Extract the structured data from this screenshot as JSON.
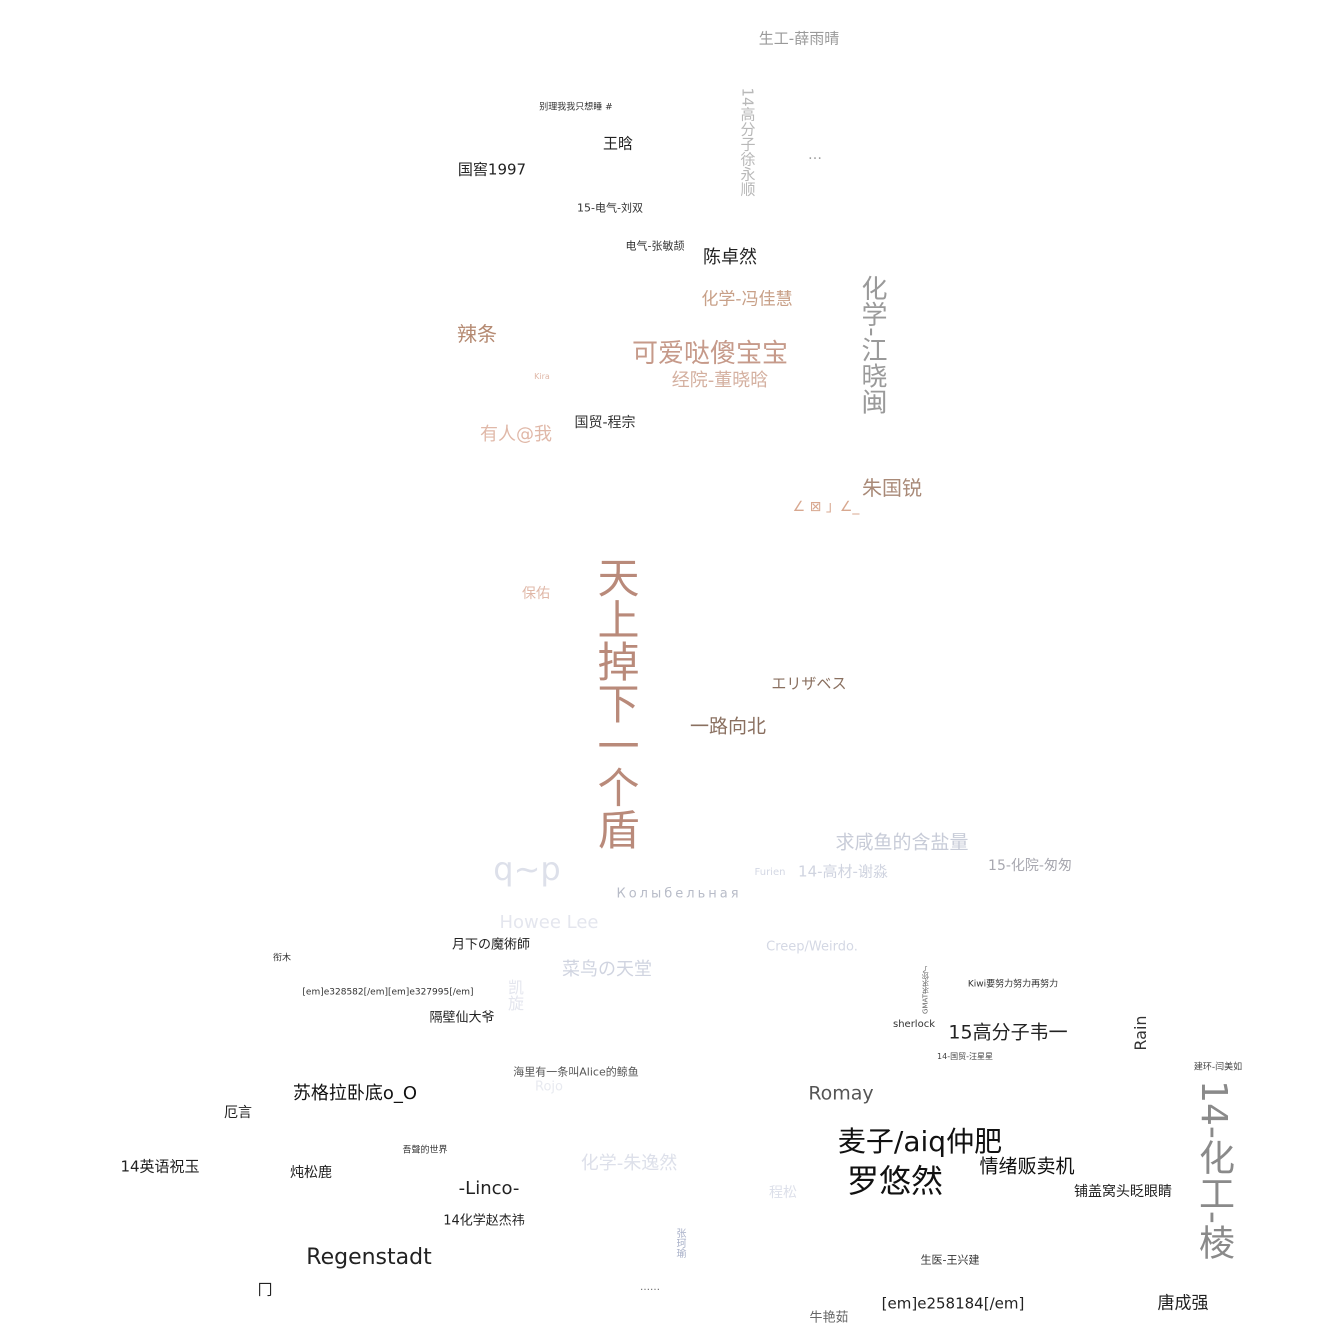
{
  "words": [
    {
      "text": "天上掉下一个盾",
      "color": "#b98a7a",
      "weight": "heavy"
    },
    {
      "text": "可爱哒傻宝宝",
      "color": "#c69a8a",
      "weight": "big"
    },
    {
      "text": "化学-江晓闽",
      "color": "#9a9a9a",
      "weight": "big"
    },
    {
      "text": "14-化工-棱",
      "color": "#8a8a8a",
      "weight": "heavy"
    },
    {
      "text": "麦子/aiq仲肥",
      "color": "#111111",
      "weight": "big"
    },
    {
      "text": "罗悠然",
      "color": "#111111",
      "weight": "big"
    },
    {
      "text": "Regenstadt",
      "color": "#222222",
      "weight": "mid"
    },
    {
      "text": "q~p",
      "color": "#dde0ea",
      "weight": "big"
    },
    {
      "text": "经院-董晓晗",
      "color": "#d4b0a0",
      "weight": "mid"
    },
    {
      "text": "朱国锐",
      "color": "#a98a78",
      "weight": "mid"
    },
    {
      "text": "辣条",
      "color": "#b58a72",
      "weight": "mid"
    },
    {
      "text": "有人@我",
      "color": "#e0b8a8",
      "weight": "mid"
    },
    {
      "text": "化学-冯佳慧",
      "color": "#c8a088",
      "weight": "mid"
    },
    {
      "text": "陈卓然",
      "color": "#222222",
      "weight": "mid"
    },
    {
      "text": "一路向北",
      "color": "#8a7060",
      "weight": "mid"
    },
    {
      "text": "エリザベス",
      "color": "#8a7060",
      "weight": "small"
    },
    {
      "text": "生工-薛雨晴",
      "color": "#9a9a9a",
      "weight": "small"
    },
    {
      "text": "14高分子徐永顺",
      "color": "#b8b8b8",
      "weight": "small"
    },
    {
      "text": "…",
      "color": "#a0a0a0",
      "weight": "small"
    },
    {
      "text": "王晗",
      "color": "#222222",
      "weight": "small"
    },
    {
      "text": "国窖1997",
      "color": "#222222",
      "weight": "small"
    },
    {
      "text": "别理我我只想睡 #",
      "color": "#333333",
      "weight": "tiny"
    },
    {
      "text": "15-电气-刘双",
      "color": "#333333",
      "weight": "tiny"
    },
    {
      "text": "电气-张敏颉",
      "color": "#333333",
      "weight": "tiny"
    },
    {
      "text": "国贸-程宗",
      "color": "#333333",
      "weight": "small"
    },
    {
      "text": "保佑",
      "color": "#e0b8a8",
      "weight": "small"
    },
    {
      "text": "求咸鱼的含盐量",
      "color": "#c8ccd8",
      "weight": "mid"
    },
    {
      "text": "14-高材-谢淼",
      "color": "#d0d4e0",
      "weight": "small"
    },
    {
      "text": "15-化院-匆匆",
      "color": "#a8a8b0",
      "weight": "small"
    },
    {
      "text": "Колыбельная",
      "color": "#b8bcc8",
      "weight": "small"
    },
    {
      "text": "Howee Lee",
      "color": "#e4e6ee",
      "weight": "mid"
    },
    {
      "text": "菜鸟の天堂",
      "color": "#d0d4e0",
      "weight": "mid"
    },
    {
      "text": "Creep/Weirdo.",
      "color": "#d4d8e4",
      "weight": "small"
    },
    {
      "text": "月下の魔術師",
      "color": "#222222",
      "weight": "small"
    },
    {
      "text": "隔壁仙大爷",
      "color": "#222222",
      "weight": "small"
    },
    {
      "text": "15高分子韦一",
      "color": "#222222",
      "weight": "mid"
    },
    {
      "text": "Rain",
      "color": "#333333",
      "weight": "small"
    },
    {
      "text": "Kiwi要努力努力再努力",
      "color": "#333333",
      "weight": "tiny"
    },
    {
      "text": "sherlock",
      "color": "#333333",
      "weight": "tiny"
    },
    {
      "text": "苏格拉卧底o_O",
      "color": "#111111",
      "weight": "mid"
    },
    {
      "text": "Romay",
      "color": "#555555",
      "weight": "mid"
    },
    {
      "text": "情绪贩卖机",
      "color": "#111111",
      "weight": "mid"
    },
    {
      "text": "铺盖窝头眨眼睛",
      "color": "#222222",
      "weight": "small"
    },
    {
      "text": "14英语祝玉",
      "color": "#222222",
      "weight": "small"
    },
    {
      "text": "炖松鹿",
      "color": "#222222",
      "weight": "small"
    },
    {
      "text": "厄言",
      "color": "#222222",
      "weight": "small"
    },
    {
      "text": "-Linco-",
      "color": "#222222",
      "weight": "mid"
    },
    {
      "text": "14化学赵杰祎",
      "color": "#222222",
      "weight": "small"
    },
    {
      "text": "化学-朱逸然",
      "color": "#dde0ea",
      "weight": "mid"
    },
    {
      "text": "程松",
      "color": "#dde0ea",
      "weight": "small"
    },
    {
      "text": "生医-王兴建",
      "color": "#333333",
      "weight": "tiny"
    },
    {
      "text": "[em]e258184[/em]",
      "color": "#222222",
      "weight": "small"
    },
    {
      "text": "唐成强",
      "color": "#222222",
      "weight": "small"
    },
    {
      "text": "牛艳茹",
      "color": "#666666",
      "weight": "small"
    },
    {
      "text": "海里有一条叫Alice的鲸鱼",
      "color": "#555555",
      "weight": "tiny"
    },
    {
      "text": "[em]e328582[/em][em]e327995[/em]",
      "color": "#333333",
      "weight": "tiny"
    },
    {
      "text": "衔木",
      "color": "#333333",
      "weight": "tiny"
    },
    {
      "text": "吾聲的世界",
      "color": "#333333",
      "weight": "tiny"
    },
    {
      "text": "建环-闫美如",
      "color": "#444444",
      "weight": "tiny"
    },
    {
      "text": "张珂瑜",
      "color": "#a8b0c8",
      "weight": "tiny"
    },
    {
      "text": "……",
      "color": "#666666",
      "weight": "tiny"
    },
    {
      "text": "Rojo",
      "color": "#e8eaf0",
      "weight": "small"
    },
    {
      "text": "Furien",
      "color": "#d4d8e4",
      "weight": "tiny"
    },
    {
      "text": "凯旋",
      "color": "#e4e6ee",
      "weight": "small"
    },
    {
      "text": "∠ ⊠ 」∠_",
      "color": "#d8a890",
      "weight": "small"
    },
    {
      "text": "冂",
      "color": "#222222",
      "weight": "small"
    },
    {
      "text": "14-国贸-汪星星",
      "color": "#444444",
      "weight": "tiny"
    },
    {
      "text": "GMAT求求你了",
      "color": "#666666",
      "weight": "tiny"
    },
    {
      "text": "Kira",
      "color": "#e0b8a8",
      "weight": "tiny"
    }
  ]
}
